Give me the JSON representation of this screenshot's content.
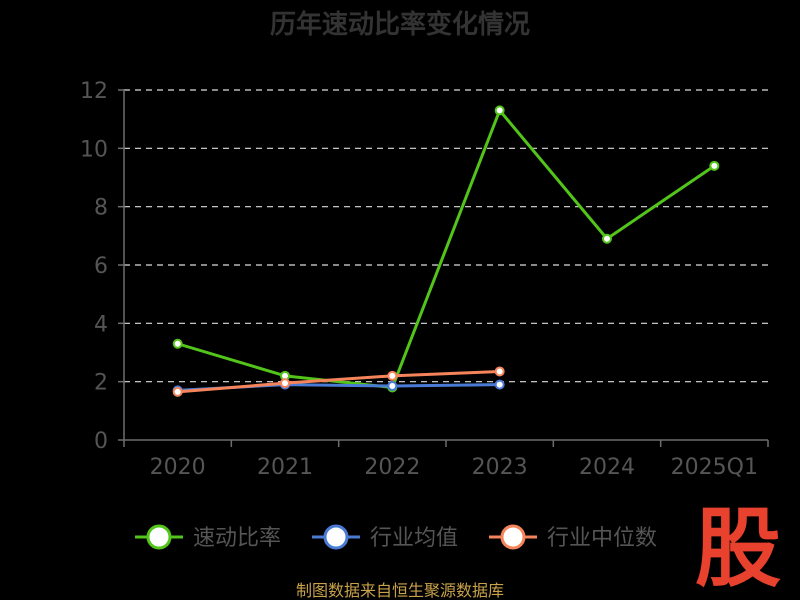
{
  "chart_data": {
    "type": "line",
    "title": "历年速动比率变化情况",
    "categories": [
      "2020",
      "2021",
      "2022",
      "2023",
      "2024",
      "2025Q1"
    ],
    "ylim": [
      0,
      12
    ],
    "yticks": [
      "0",
      "2",
      "4",
      "6",
      "8",
      "10",
      "12"
    ],
    "grid": true,
    "legend_position": "bottom",
    "series": [
      {
        "name": "速动比率",
        "color": "#52c41a",
        "values": [
          3.3,
          2.2,
          1.8,
          11.3,
          6.9,
          9.4
        ]
      },
      {
        "name": "行业均值",
        "color": "#4a7bd4",
        "values": [
          1.7,
          1.9,
          1.85,
          1.9,
          null,
          null
        ]
      },
      {
        "name": "行业中位数",
        "color": "#f5845a",
        "values": [
          1.65,
          1.95,
          2.2,
          2.35,
          null,
          null
        ]
      }
    ]
  },
  "footer": {
    "source": "制图数据来自恒生聚源数据库"
  },
  "watermark": {
    "text": "股"
  }
}
